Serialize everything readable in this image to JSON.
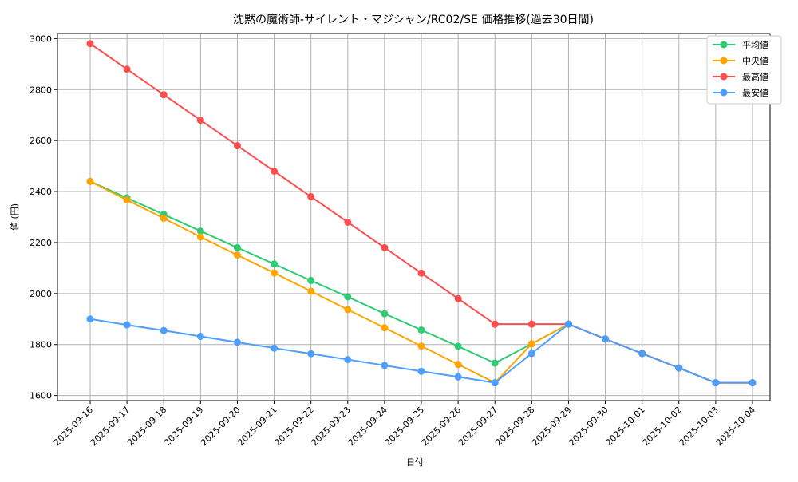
{
  "chart_data": {
    "type": "line",
    "title": "沈黙の魔術師-サイレント・マジシャン/RC02/SE 価格推移(過去30日間)",
    "xlabel": "日付",
    "ylabel": "値 (円)",
    "ylim": [
      1580,
      3020
    ],
    "yticks": [
      1600,
      1800,
      2000,
      2200,
      2400,
      2600,
      2800,
      3000
    ],
    "grid": true,
    "legend_position": "top-right",
    "x": [
      "2025-09-16",
      "2025-09-17",
      "2025-09-18",
      "2025-09-19",
      "2025-09-20",
      "2025-09-21",
      "2025-09-22",
      "2025-09-23",
      "2025-09-24",
      "2025-09-25",
      "2025-09-26",
      "2025-09-27",
      "2025-09-28",
      "2025-09-29",
      "2025-09-30",
      "2025-10-01",
      "2025-10-02",
      "2025-10-03",
      "2025-10-04"
    ],
    "series": [
      {
        "name": "平均値",
        "color": "#2ecc71",
        "values": [
          2440,
          2375,
          2310,
          2245,
          2180,
          2116,
          2051,
          1987,
          1921,
          1857,
          1793,
          1727,
          1803,
          1880,
          1822,
          1765,
          1708,
          1650,
          1650
        ]
      },
      {
        "name": "中央値",
        "color": "#ffa500",
        "values": [
          2440,
          2367,
          2295,
          2222,
          2151,
          2081,
          2009,
          1937,
          1866,
          1794,
          1722,
          1650,
          1803,
          1880,
          1822,
          1765,
          1708,
          1650,
          1650
        ]
      },
      {
        "name": "最高値",
        "color": "#ff4d4d",
        "values": [
          2980,
          2880,
          2780,
          2680,
          2580,
          2480,
          2380,
          2280,
          2180,
          2080,
          1980,
          1880,
          1880,
          1880,
          1822,
          1765,
          1708,
          1650,
          1650
        ]
      },
      {
        "name": "最安値",
        "color": "#4d9fff",
        "values": [
          1900,
          1877,
          1855,
          1832,
          1809,
          1786,
          1764,
          1741,
          1718,
          1695,
          1673,
          1650,
          1765,
          1880,
          1822,
          1765,
          1708,
          1650,
          1650
        ]
      }
    ]
  }
}
